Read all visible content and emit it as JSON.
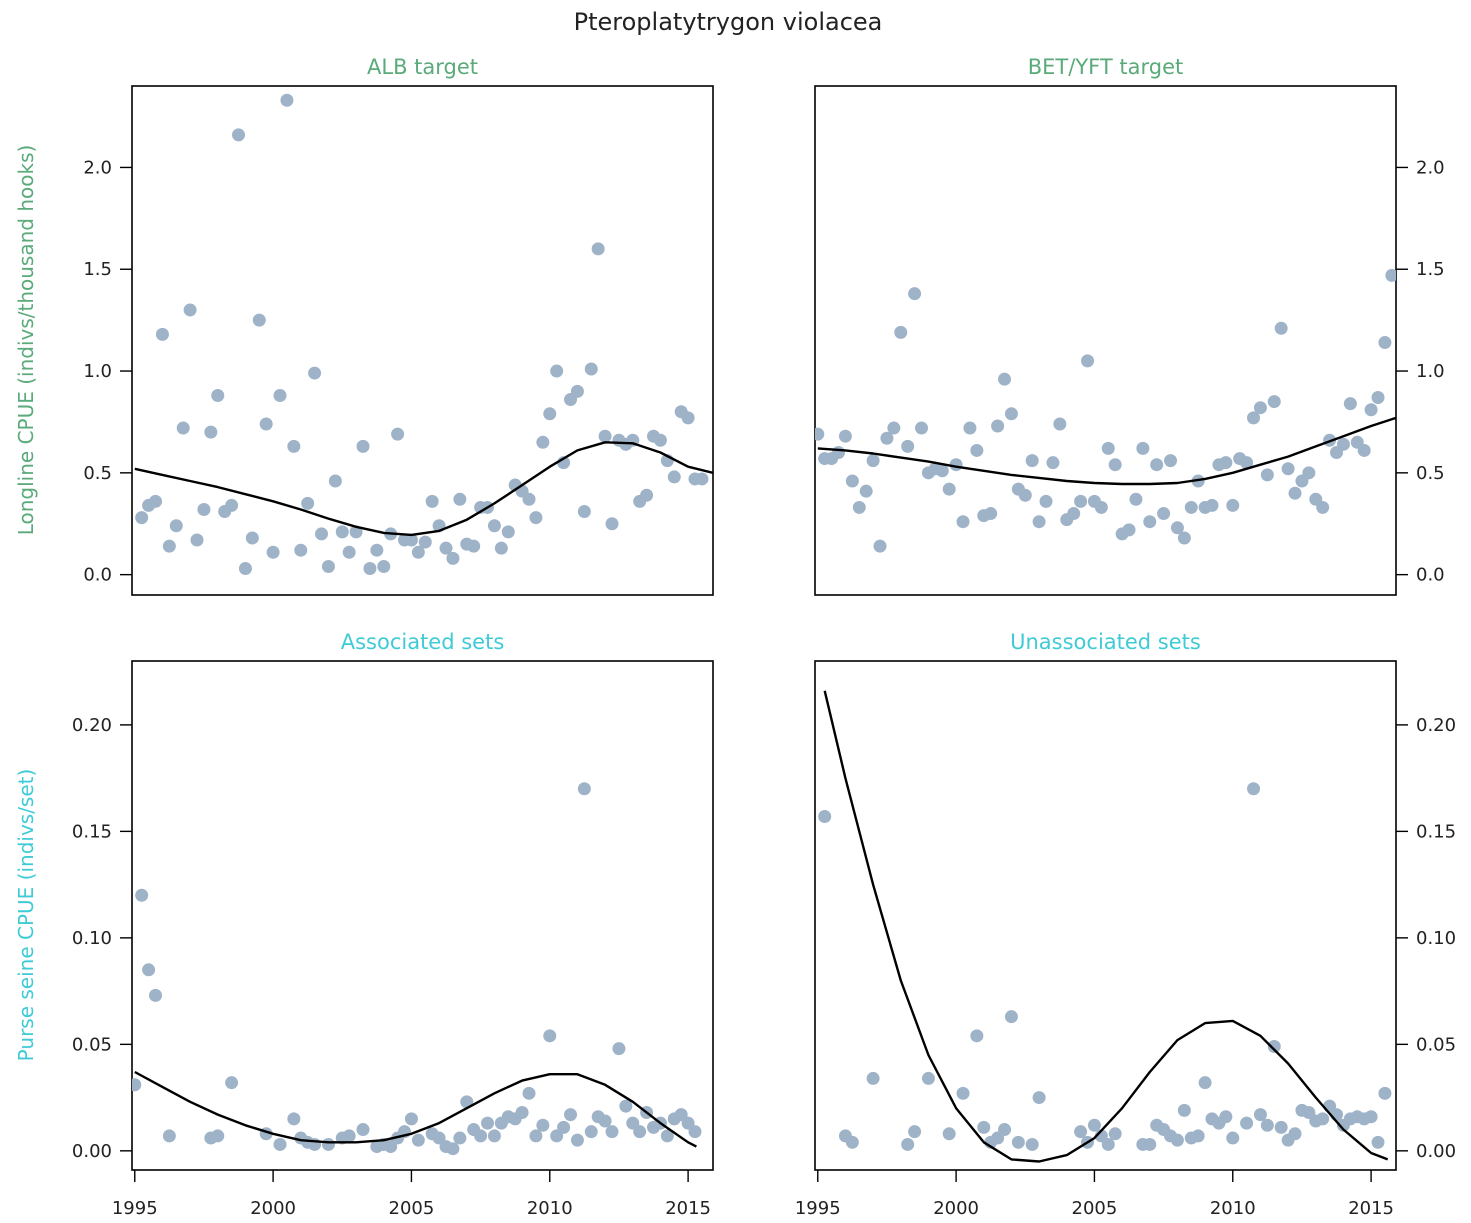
{
  "figure": {
    "title": "Pteroplatytrygon violacea",
    "point_color": "#9fb3c8",
    "line_color": "#000000",
    "longline_color": "#5aaa7a",
    "purse_color": "#3fcbd6",
    "longline_ylabel": "Longline CPUE (indivs/thousand hooks)",
    "purse_ylabel": "Purse seine CPUE (indivs/set)"
  },
  "chart_data": [
    {
      "type": "scatter",
      "title": "ALB target",
      "xlim": [
        1994.9,
        2015.9
      ],
      "ylim": [
        -0.1,
        2.4
      ],
      "yticks": [
        0.0,
        0.5,
        1.0,
        1.5,
        2.0
      ],
      "ytick_labels": [
        "0.0",
        "0.5",
        "1.0",
        "1.5",
        "2.0"
      ],
      "y_axis_side": "left",
      "x_axis_shown": false,
      "x": [
        1995.25,
        1995.5,
        1995.75,
        1996.0,
        1996.25,
        1996.5,
        1996.75,
        1997.0,
        1997.25,
        1997.5,
        1997.75,
        1998.0,
        1998.25,
        1998.5,
        1998.75,
        1999.0,
        1999.25,
        1999.5,
        1999.75,
        2000.0,
        2000.25,
        2000.5,
        2000.75,
        2001.0,
        2001.25,
        2001.5,
        2001.75,
        2002.0,
        2002.25,
        2002.5,
        2002.75,
        2003.0,
        2003.25,
        2003.5,
        2003.75,
        2004.0,
        2004.25,
        2004.5,
        2004.75,
        2005.0,
        2005.25,
        2005.5,
        2005.75,
        2006.0,
        2006.25,
        2006.5,
        2006.75,
        2007.0,
        2007.25,
        2007.5,
        2007.75,
        2008.0,
        2008.25,
        2008.5,
        2008.75,
        2009.0,
        2009.25,
        2009.5,
        2009.75,
        2010.0,
        2010.25,
        2010.5,
        2010.75,
        2011.0,
        2011.25,
        2011.5,
        2011.75,
        2012.0,
        2012.25,
        2012.5,
        2012.75,
        2013.0,
        2013.25,
        2013.5,
        2013.75,
        2014.0,
        2014.25,
        2014.5,
        2014.75,
        2015.0,
        2015.25,
        2015.5
      ],
      "y": [
        0.28,
        0.34,
        0.36,
        1.18,
        0.14,
        0.24,
        0.72,
        1.3,
        0.17,
        0.32,
        0.7,
        0.88,
        0.31,
        0.34,
        2.16,
        0.03,
        0.18,
        1.25,
        0.74,
        0.11,
        0.88,
        2.33,
        0.63,
        0.12,
        0.35,
        0.99,
        0.2,
        0.04,
        0.46,
        0.21,
        0.11,
        0.21,
        0.63,
        0.03,
        0.12,
        0.04,
        0.2,
        0.69,
        0.17,
        0.17,
        0.11,
        0.16,
        0.36,
        0.24,
        0.13,
        0.08,
        0.37,
        0.15,
        0.14,
        0.33,
        0.33,
        0.24,
        0.13,
        0.21,
        0.44,
        0.41,
        0.37,
        0.28,
        0.65,
        0.79,
        1.0,
        0.55,
        0.86,
        0.9,
        0.31,
        1.01,
        1.6,
        0.68,
        0.25,
        0.66,
        0.64,
        0.66,
        0.36,
        0.39,
        0.68,
        0.66,
        0.56,
        0.48,
        0.8,
        0.77,
        0.47,
        0.47
      ],
      "trend_x": [
        1995,
        1996,
        1997,
        1998,
        1999,
        2000,
        2001,
        2002,
        2003,
        2004,
        2005,
        2006,
        2007,
        2008,
        2009,
        2010,
        2011,
        2012,
        2013,
        2014,
        2015,
        2015.9
      ],
      "trend_y": [
        0.52,
        0.49,
        0.46,
        0.43,
        0.395,
        0.36,
        0.32,
        0.275,
        0.235,
        0.205,
        0.195,
        0.215,
        0.27,
        0.35,
        0.44,
        0.53,
        0.61,
        0.65,
        0.645,
        0.6,
        0.53,
        0.5
      ]
    },
    {
      "type": "scatter",
      "title": "BET/YFT target",
      "xlim": [
        1994.9,
        2015.9
      ],
      "ylim": [
        -0.1,
        2.4
      ],
      "yticks": [
        0.0,
        0.5,
        1.0,
        1.5,
        2.0
      ],
      "ytick_labels": [
        "0.0",
        "0.5",
        "1.0",
        "1.5",
        "2.0"
      ],
      "y_axis_side": "right",
      "x_axis_shown": false,
      "x": [
        1995.0,
        1995.25,
        1995.5,
        1995.75,
        1996.0,
        1996.25,
        1996.5,
        1996.75,
        1997.0,
        1997.25,
        1997.5,
        1997.75,
        1998.0,
        1998.25,
        1998.5,
        1998.75,
        1999.0,
        1999.25,
        1999.5,
        1999.75,
        2000.0,
        2000.25,
        2000.5,
        2000.75,
        2001.0,
        2001.25,
        2001.5,
        2001.75,
        2002.0,
        2002.25,
        2002.5,
        2002.75,
        2003.0,
        2003.25,
        2003.5,
        2003.75,
        2004.0,
        2004.25,
        2004.5,
        2004.75,
        2005.0,
        2005.25,
        2005.5,
        2005.75,
        2006.0,
        2006.25,
        2006.5,
        2006.75,
        2007.0,
        2007.25,
        2007.5,
        2007.75,
        2008.0,
        2008.25,
        2008.5,
        2008.75,
        2009.0,
        2009.25,
        2009.5,
        2009.75,
        2010.0,
        2010.25,
        2010.5,
        2010.75,
        2011.0,
        2011.25,
        2011.5,
        2011.75,
        2012.0,
        2012.25,
        2012.5,
        2012.75,
        2013.0,
        2013.25,
        2013.5,
        2013.75,
        2014.0,
        2014.25,
        2014.5,
        2014.75,
        2015.0,
        2015.25,
        2015.5,
        2015.75
      ],
      "y": [
        0.69,
        0.57,
        0.57,
        0.6,
        0.68,
        0.46,
        0.33,
        0.41,
        0.56,
        0.14,
        0.67,
        0.72,
        1.19,
        0.63,
        1.38,
        0.72,
        0.5,
        0.52,
        0.51,
        0.42,
        0.54,
        0.26,
        0.72,
        0.61,
        0.29,
        0.3,
        0.73,
        0.96,
        0.79,
        0.42,
        0.39,
        0.56,
        0.26,
        0.36,
        0.55,
        0.74,
        0.27,
        0.3,
        0.36,
        1.05,
        0.36,
        0.33,
        0.62,
        0.54,
        0.2,
        0.22,
        0.37,
        0.62,
        0.26,
        0.54,
        0.3,
        0.56,
        0.23,
        0.18,
        0.33,
        0.46,
        0.33,
        0.34,
        0.54,
        0.55,
        0.34,
        0.57,
        0.55,
        0.77,
        0.82,
        0.49,
        0.85,
        1.21,
        0.52,
        0.4,
        0.46,
        0.5,
        0.37,
        0.33,
        0.66,
        0.6,
        0.64,
        0.84,
        0.65,
        0.61,
        0.81,
        0.87,
        1.14,
        1.47
      ],
      "trend_x": [
        1995,
        1996,
        1997,
        1998,
        1999,
        2000,
        2001,
        2002,
        2003,
        2004,
        2005,
        2006,
        2007,
        2008,
        2009,
        2010,
        2011,
        2012,
        2013,
        2014,
        2015,
        2015.9
      ],
      "trend_y": [
        0.62,
        0.61,
        0.595,
        0.575,
        0.555,
        0.53,
        0.51,
        0.49,
        0.475,
        0.46,
        0.45,
        0.445,
        0.445,
        0.45,
        0.47,
        0.5,
        0.54,
        0.58,
        0.63,
        0.68,
        0.73,
        0.77
      ]
    },
    {
      "type": "scatter",
      "title": "Associated sets",
      "xlim": [
        1994.9,
        2015.9
      ],
      "ylim": [
        -0.009,
        0.23
      ],
      "xticks": [
        1995,
        2000,
        2005,
        2010,
        2015
      ],
      "xtick_labels": [
        "1995",
        "2000",
        "2005",
        "2010",
        "2015"
      ],
      "yticks": [
        0.0,
        0.05,
        0.1,
        0.15,
        0.2
      ],
      "ytick_labels": [
        "0.00",
        "0.05",
        "0.10",
        "0.15",
        "0.20"
      ],
      "y_axis_side": "left",
      "x_axis_shown": true,
      "x": [
        1995.0,
        1995.25,
        1995.5,
        1995.75,
        1996.25,
        1997.75,
        1998.0,
        1998.5,
        1999.75,
        2000.25,
        2000.75,
        2001.0,
        2001.25,
        2001.5,
        2002.0,
        2002.5,
        2002.75,
        2003.25,
        2003.75,
        2004.0,
        2004.25,
        2004.5,
        2004.75,
        2005.0,
        2005.25,
        2005.75,
        2006.0,
        2006.25,
        2006.5,
        2006.75,
        2007.0,
        2007.25,
        2007.5,
        2007.75,
        2008.0,
        2008.25,
        2008.5,
        2008.75,
        2009.0,
        2009.25,
        2009.5,
        2009.75,
        2010.0,
        2010.25,
        2010.5,
        2010.75,
        2011.0,
        2011.25,
        2011.5,
        2011.75,
        2012.0,
        2012.25,
        2012.5,
        2012.75,
        2013.0,
        2013.25,
        2013.5,
        2013.75,
        2014.0,
        2014.25,
        2014.5,
        2014.75,
        2015.0,
        2015.25
      ],
      "y": [
        0.031,
        0.12,
        0.085,
        0.073,
        0.007,
        0.006,
        0.007,
        0.032,
        0.008,
        0.003,
        0.015,
        0.006,
        0.004,
        0.003,
        0.003,
        0.006,
        0.007,
        0.01,
        0.002,
        0.003,
        0.002,
        0.006,
        0.009,
        0.015,
        0.005,
        0.008,
        0.006,
        0.002,
        0.001,
        0.006,
        0.023,
        0.01,
        0.007,
        0.013,
        0.007,
        0.013,
        0.016,
        0.015,
        0.018,
        0.027,
        0.007,
        0.012,
        0.054,
        0.007,
        0.011,
        0.017,
        0.005,
        0.17,
        0.009,
        0.016,
        0.014,
        0.009,
        0.048,
        0.021,
        0.013,
        0.009,
        0.018,
        0.011,
        0.013,
        0.007,
        0.015,
        0.017,
        0.013,
        0.009
      ],
      "trend_x": [
        1995,
        1996,
        1997,
        1998,
        1999,
        2000,
        2001,
        2002,
        2003,
        2004,
        2005,
        2006,
        2007,
        2008,
        2009,
        2010,
        2011,
        2012,
        2013,
        2014,
        2015,
        2015.3
      ],
      "trend_y": [
        0.037,
        0.03,
        0.023,
        0.017,
        0.012,
        0.008,
        0.005,
        0.004,
        0.004,
        0.005,
        0.008,
        0.013,
        0.02,
        0.027,
        0.033,
        0.036,
        0.036,
        0.031,
        0.023,
        0.013,
        0.004,
        0.002
      ]
    },
    {
      "type": "scatter",
      "title": "Unassociated sets",
      "xlim": [
        1994.9,
        2015.9
      ],
      "ylim": [
        -0.009,
        0.23
      ],
      "xticks": [
        1995,
        2000,
        2005,
        2010,
        2015
      ],
      "xtick_labels": [
        "1995",
        "2000",
        "2005",
        "2010",
        "2015"
      ],
      "yticks": [
        0.0,
        0.05,
        0.1,
        0.15,
        0.2
      ],
      "ytick_labels": [
        "0.00",
        "0.05",
        "0.10",
        "0.15",
        "0.20"
      ],
      "y_axis_side": "right",
      "x_axis_shown": true,
      "x": [
        1995.25,
        1996.0,
        1996.25,
        1997.0,
        1998.25,
        1998.5,
        1999.0,
        1999.75,
        2000.25,
        2000.75,
        2001.0,
        2001.25,
        2001.5,
        2001.75,
        2002.0,
        2002.25,
        2002.75,
        2003.0,
        2004.5,
        2004.75,
        2005.0,
        2005.25,
        2005.5,
        2005.75,
        2006.75,
        2007.0,
        2007.25,
        2007.5,
        2007.75,
        2008.0,
        2008.25,
        2008.5,
        2008.75,
        2009.0,
        2009.25,
        2009.5,
        2009.75,
        2010.0,
        2010.5,
        2010.75,
        2011.0,
        2011.25,
        2011.5,
        2011.75,
        2012.0,
        2012.25,
        2012.5,
        2012.75,
        2013.0,
        2013.25,
        2013.5,
        2013.75,
        2014.0,
        2014.25,
        2014.5,
        2014.75,
        2015.0,
        2015.25,
        2015.5
      ],
      "y": [
        0.157,
        0.007,
        0.004,
        0.034,
        0.003,
        0.009,
        0.034,
        0.008,
        0.027,
        0.054,
        0.011,
        0.004,
        0.006,
        0.01,
        0.063,
        0.004,
        0.003,
        0.025,
        0.009,
        0.004,
        0.012,
        0.007,
        0.003,
        0.008,
        0.003,
        0.003,
        0.012,
        0.01,
        0.007,
        0.005,
        0.019,
        0.006,
        0.007,
        0.032,
        0.015,
        0.013,
        0.016,
        0.006,
        0.013,
        0.17,
        0.017,
        0.012,
        0.049,
        0.011,
        0.005,
        0.008,
        0.019,
        0.018,
        0.014,
        0.015,
        0.021,
        0.017,
        0.012,
        0.015,
        0.016,
        0.015,
        0.016,
        0.004,
        0.027
      ],
      "trend_x": [
        1995.25,
        1996,
        1997,
        1998,
        1999,
        2000,
        2001,
        2002,
        2003,
        2004,
        2005,
        2006,
        2007,
        2008,
        2009,
        2010,
        2011,
        2012,
        2013,
        2014,
        2015,
        2015.6
      ],
      "trend_y": [
        0.216,
        0.175,
        0.125,
        0.08,
        0.045,
        0.02,
        0.004,
        -0.004,
        -0.005,
        -0.002,
        0.006,
        0.02,
        0.037,
        0.052,
        0.06,
        0.061,
        0.054,
        0.041,
        0.025,
        0.01,
        -0.001,
        -0.004
      ]
    }
  ]
}
